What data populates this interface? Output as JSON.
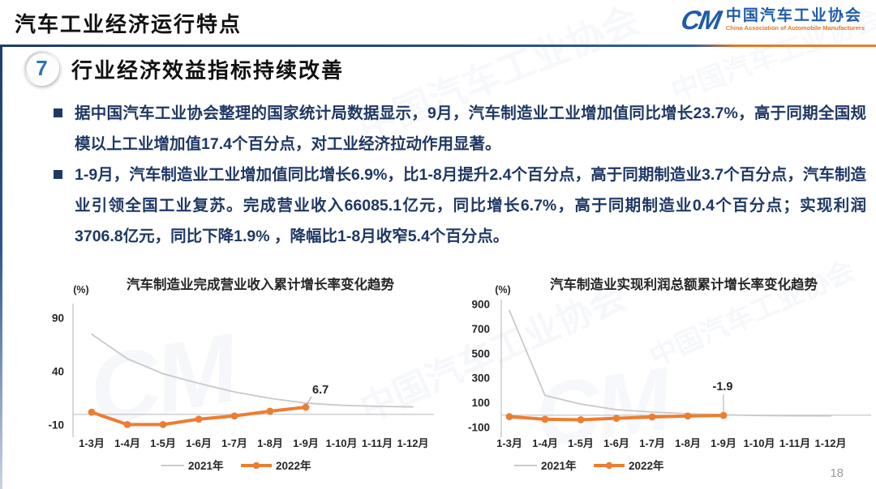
{
  "header": {
    "title": "汽车工业经济运行特点",
    "logo": {
      "mark": "CM",
      "org_cn": "中国汽车工业协会",
      "org_en": "China Association of Automobile Manufacturers"
    }
  },
  "section": {
    "number": "7",
    "heading": "行业经济效益指标持续改善"
  },
  "bullets": [
    "据中国汽车工业协会整理的国家统计局数据显示，9月，汽车制造业工业增加值同比增长23.7%，高于同期全国规模以上工业增加值17.4个百分点，对工业经济拉动作用显著。",
    "1-9月，汽车制造业工业增加值同比增长6.9%，比1-8月提升2.4个百分点，高于同期制造业3.7个百分点，汽车制造业引领全国工业复苏。完成营业收入66085.1亿元，同比增长6.7%，高于同期制造业0.4个百分点；实现利润3706.8亿元，同比下降1.9% ，降幅比1-8月收窄5.4个百分点。"
  ],
  "watermark_text": "中国汽车工业协会",
  "page_number": "18",
  "colors": {
    "body_text": "#1F3864",
    "accent_orange": "#ED7D31",
    "series_gray": "#C9C9C9",
    "red_label": "#C00000",
    "badge_blue": "#2E74B5",
    "logo_blue": "#1F5CA9",
    "header_rule_blue": "#1d3d6e"
  },
  "chart_data": [
    {
      "type": "line",
      "title": "汽车制造业完成营业收入累计增长率变化趋势",
      "ylabel": "(%)",
      "yticks": [
        90,
        40,
        -10
      ],
      "ylim": [
        -18,
        102
      ],
      "grid": false,
      "legend_position": "bottom",
      "categories": [
        "1-3月",
        "1-4月",
        "1-5月",
        "1-6月",
        "1-7月",
        "1-8月",
        "1-9月",
        "1-10月",
        "1-11月",
        "1-12月"
      ],
      "series": [
        {
          "name": "2021年",
          "color": "#C9C9C9",
          "markers": false,
          "values": [
            75,
            52,
            38,
            29,
            21,
            15,
            10.5,
            8.5,
            7.5,
            7
          ]
        },
        {
          "name": "2022年",
          "color": "#ED7D31",
          "markers": true,
          "values": [
            2,
            -9.5,
            -9.5,
            -4.5,
            -1.5,
            3,
            6.7
          ]
        }
      ],
      "annotation": {
        "text": "6.7",
        "color": "#404040"
      }
    },
    {
      "type": "line",
      "title": "汽车制造业实现利润总额累计增长率变化趋势",
      "ylabel": "(%)",
      "yticks": [
        900,
        700,
        500,
        300,
        100,
        -100
      ],
      "ylim": [
        -150,
        960
      ],
      "grid": false,
      "legend_position": "bottom",
      "categories": [
        "1-3月",
        "1-4月",
        "1-5月",
        "1-6月",
        "1-7月",
        "1-8月",
        "1-9月",
        "1-10月",
        "1-11月",
        "1-12月"
      ],
      "series": [
        {
          "name": "2021年",
          "color": "#C9C9C9",
          "markers": false,
          "values": [
            850,
            160,
            90,
            45,
            25,
            12,
            3,
            -3,
            -5,
            -6
          ]
        },
        {
          "name": "2022年",
          "color": "#ED7D31",
          "markers": true,
          "values": [
            -11.9,
            -33.4,
            -37.5,
            -25.5,
            -14.4,
            -7.3,
            -1.9
          ]
        }
      ],
      "annotation": {
        "text": "-1.9",
        "color": "#C00000"
      }
    }
  ]
}
